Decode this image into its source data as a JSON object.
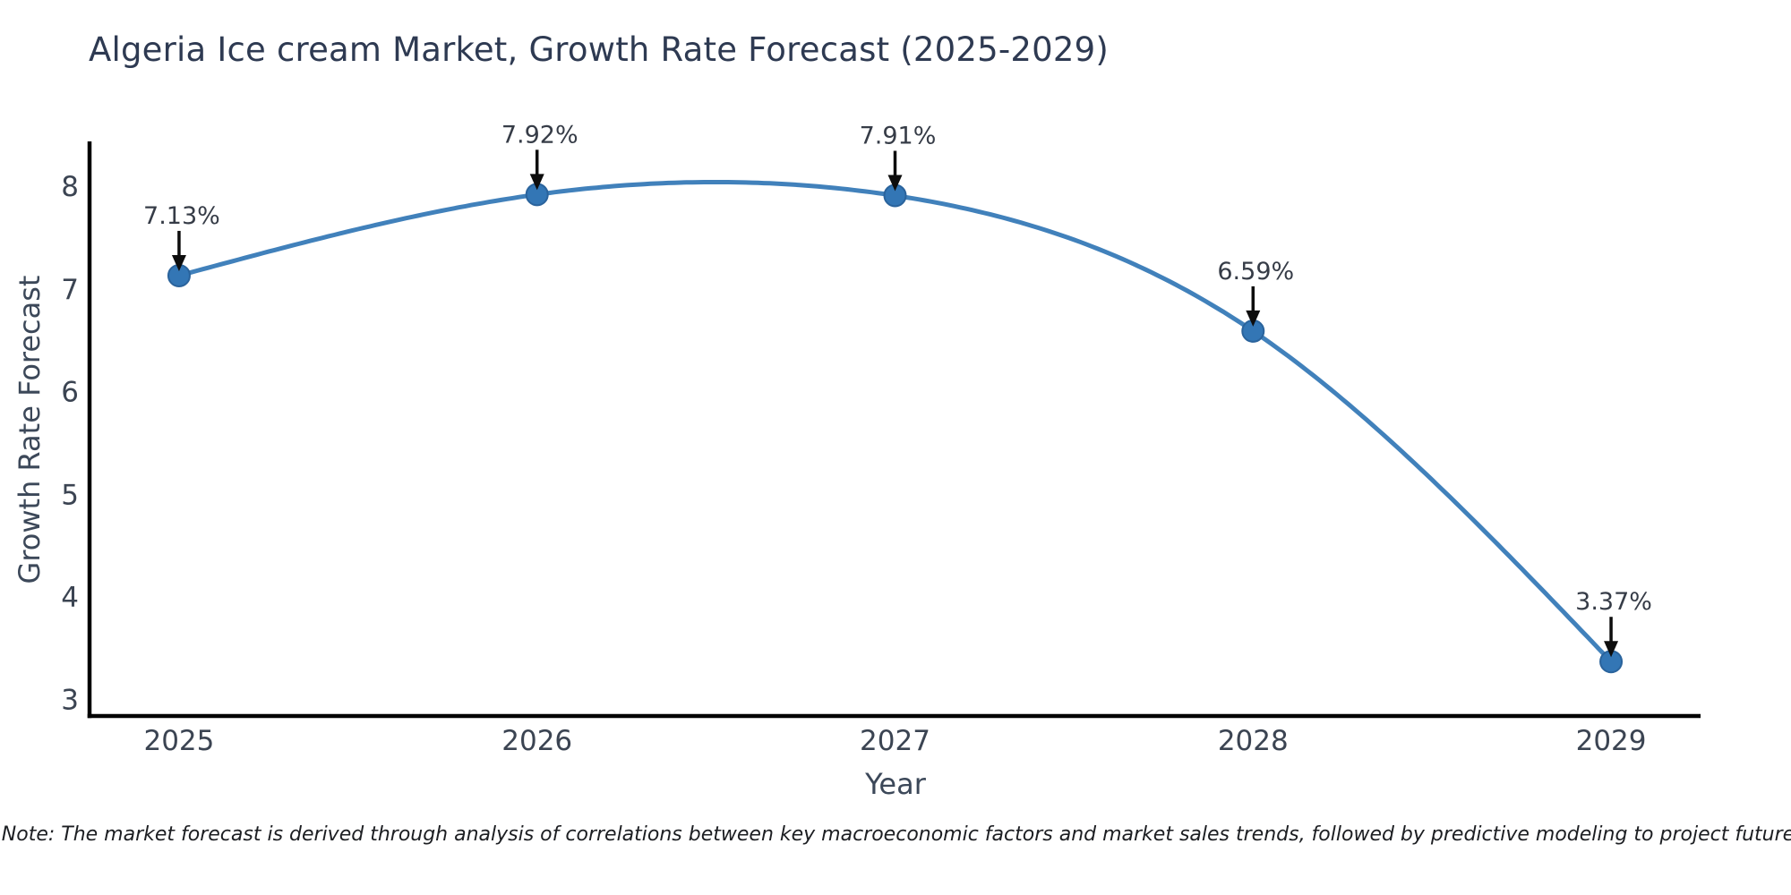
{
  "chart_data": {
    "type": "line",
    "title": "Algeria Ice cream Market, Growth Rate Forecast (2025-2029)",
    "xlabel": "Year",
    "ylabel": "Growth Rate Forecast",
    "x": [
      2025,
      2026,
      2027,
      2028,
      2029
    ],
    "categories": [
      "2025",
      "2026",
      "2027",
      "2028",
      "2029"
    ],
    "series": [
      {
        "name": "Growth Rate Forecast",
        "values": [
          7.13,
          7.92,
          7.91,
          6.59,
          3.37
        ]
      }
    ],
    "point_labels": [
      "7.13%",
      "7.92%",
      "7.91%",
      "6.59%",
      "3.37%"
    ],
    "yticks": [
      3,
      4,
      5,
      6,
      7,
      8
    ],
    "xlim": [
      2024.75,
      2029.25
    ],
    "ylim": [
      2.84,
      8.42
    ],
    "grid": false,
    "legend": false,
    "curve": "natural-cubic-spline",
    "annotation_arrow_direction": "down",
    "colors": {
      "line": "#4181bb",
      "marker": "#3376b5",
      "marker_edge": "#2a639c",
      "axis": "#000000",
      "tick_label": "#3b4452",
      "axis_title": "#3c4859",
      "chart_title": "#2e3a52",
      "annotation_text": "#363c47",
      "annotation_arrow": "#0d0d0d",
      "background": "#ffffff"
    }
  },
  "footnote": {
    "text": "Note: The market forecast is derived through analysis of correlations between key macroeconomic factors and market sales trends, followed by predictive modeling to project future sales."
  }
}
